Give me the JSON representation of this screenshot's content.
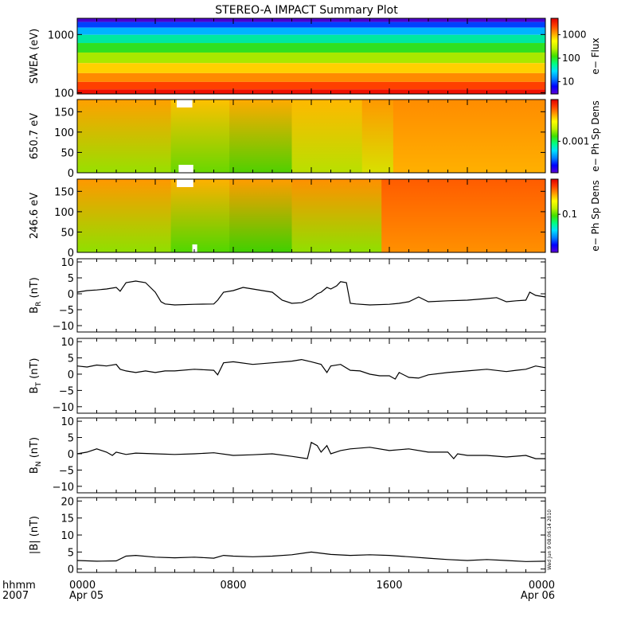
{
  "title": "STEREO-A IMPACT Summary Plot",
  "stamp": "Wed Jun  9 08:06:14 2010",
  "time_axis": {
    "label_top": "hhmm",
    "label_bottom": "2007",
    "range_hours": [
      0,
      24
    ],
    "ticks": [
      {
        "hour": 0,
        "time": "0000",
        "date": "Apr 05"
      },
      {
        "hour": 8,
        "time": "0800",
        "date": ""
      },
      {
        "hour": 16,
        "time": "1600",
        "date": ""
      },
      {
        "hour": 24,
        "time": "0000",
        "date": "Apr 06"
      }
    ]
  },
  "colors": {
    "trace": "#000000",
    "frame": "#000000",
    "background": "#ffffff"
  },
  "chart_data": [
    {
      "type": "heatmap",
      "name": "swea-spectrogram",
      "ylabel": "SWEA (eV)",
      "yscale": "log",
      "ylim": [
        95,
        1900
      ],
      "yticks": [
        {
          "v": 100,
          "label": "100"
        },
        {
          "v": 1000,
          "label": "1000"
        }
      ],
      "colorbar_label": "e− Flux",
      "colorbar_scale": "log",
      "colorbar_range": [
        3,
        5000
      ],
      "colorbar_ticks": [
        {
          "v": 10,
          "label": "10"
        },
        {
          "v": 100,
          "label": "100"
        },
        {
          "v": 1000,
          "label": "1000"
        }
      ],
      "bands": [
        {
          "energy_eV": 1800,
          "color": "#4b00d0"
        },
        {
          "energy_eV": 1500,
          "color": "#0040ff"
        },
        {
          "energy_eV": 1150,
          "color": "#00b4ff"
        },
        {
          "energy_eV": 850,
          "color": "#00e8a0"
        },
        {
          "energy_eV": 600,
          "color": "#30e020"
        },
        {
          "energy_eV": 400,
          "color": "#a8e800"
        },
        {
          "energy_eV": 260,
          "color": "#ffd000"
        },
        {
          "energy_eV": 180,
          "color": "#ff8a00"
        },
        {
          "energy_eV": 130,
          "color": "#ff4000"
        },
        {
          "energy_eV": 100,
          "color": "#f01000"
        }
      ]
    },
    {
      "type": "heatmap",
      "name": "pad-650-eV",
      "ylabel": "650.7 eV",
      "ylim": [
        0,
        180
      ],
      "yticks": [
        {
          "v": 0,
          "label": "0"
        },
        {
          "v": 50,
          "label": "50"
        },
        {
          "v": 100,
          "label": "100"
        },
        {
          "v": 150,
          "label": "150"
        }
      ],
      "colorbar_label": "e− Ph Sp Dens",
      "colorbar_ticks": [
        {
          "f": 0.43,
          "label": "0.001"
        }
      ],
      "segments": [
        {
          "t0": 0.0,
          "t1": 4.8,
          "upper": "#ffa000",
          "lower": "#98e000"
        },
        {
          "t0": 4.8,
          "t1": 7.8,
          "upper": "#ffc000",
          "lower": "#68d800"
        },
        {
          "t0": 7.8,
          "t1": 11.0,
          "upper": "#ffaa00",
          "lower": "#50d000"
        },
        {
          "t0": 11.0,
          "t1": 14.6,
          "upper": "#ffb800",
          "lower": "#b8e000"
        },
        {
          "t0": 14.6,
          "t1": 16.2,
          "upper": "#ff9800",
          "lower": "#d8e000"
        },
        {
          "t0": 16.2,
          "t1": 24.0,
          "upper": "#ff8c00",
          "lower": "#ffb000"
        }
      ],
      "gaps": [
        {
          "t0": 5.1,
          "t1": 5.9,
          "edge": "top"
        },
        {
          "t0": 5.2,
          "t1": 5.95,
          "edge": "bottom"
        }
      ]
    },
    {
      "type": "heatmap",
      "name": "pad-246-eV",
      "ylabel": "246.6 eV",
      "ylim": [
        0,
        180
      ],
      "yticks": [
        {
          "v": 0,
          "label": "0"
        },
        {
          "v": 50,
          "label": "50"
        },
        {
          "v": 100,
          "label": "100"
        },
        {
          "v": 150,
          "label": "150"
        }
      ],
      "colorbar_label": "e− Ph Sp Dens",
      "colorbar_ticks": [
        {
          "f": 0.52,
          "label": "0.1"
        }
      ],
      "segments": [
        {
          "t0": 0.0,
          "t1": 4.8,
          "upper": "#ff9800",
          "lower": "#90e000"
        },
        {
          "t0": 4.8,
          "t1": 7.8,
          "upper": "#ffb000",
          "lower": "#50d800"
        },
        {
          "t0": 7.8,
          "t1": 11.0,
          "upper": "#ff9c00",
          "lower": "#40d000"
        },
        {
          "t0": 11.0,
          "t1": 15.6,
          "upper": "#ff9000",
          "lower": "#90e000"
        },
        {
          "t0": 15.6,
          "t1": 24.0,
          "upper": "#ff5c00",
          "lower": "#ff9000"
        }
      ],
      "gaps": [
        {
          "t0": 5.1,
          "t1": 5.95,
          "edge": "top"
        },
        {
          "t0": 5.9,
          "t1": 6.15,
          "edge": "bottom"
        }
      ]
    },
    {
      "type": "line",
      "name": "br",
      "ylabel_main": "B",
      "ylabel_sub": "R",
      "ylabel_unit": " (nT)",
      "ylim": [
        -12,
        11
      ],
      "yticks": [
        {
          "v": -10,
          "label": "−10"
        },
        {
          "v": -5,
          "label": "−5"
        },
        {
          "v": 0,
          "label": "0"
        },
        {
          "v": 5,
          "label": "5"
        },
        {
          "v": 10,
          "label": "10"
        }
      ],
      "t": [
        0,
        0.5,
        1,
        1.5,
        2,
        2.2,
        2.5,
        3,
        3.5,
        4,
        4.3,
        4.5,
        5,
        6,
        7,
        7.2,
        7.5,
        8,
        8.5,
        9,
        9.5,
        10,
        10.5,
        11,
        11.5,
        12,
        12.3,
        12.5,
        12.8,
        13,
        13.3,
        13.5,
        13.8,
        14,
        14.3,
        15,
        16,
        16.5,
        17,
        17.5,
        18,
        19,
        20,
        21,
        21.5,
        22,
        22.5,
        23,
        23.2,
        23.5,
        24
      ],
      "values": [
        0.5,
        1,
        1.2,
        1.5,
        2,
        0.8,
        3.5,
        4,
        3.5,
        0.5,
        -2.5,
        -3.2,
        -3.5,
        -3.3,
        -3.2,
        -2,
        0.5,
        1,
        2,
        1.5,
        1,
        0.5,
        -2,
        -3,
        -2.8,
        -1.5,
        0,
        0.5,
        2,
        1.5,
        2.5,
        3.8,
        3.5,
        -3,
        -3.2,
        -3.5,
        -3.3,
        -3,
        -2.5,
        -1,
        -2.5,
        -2.2,
        -2,
        -1.5,
        -1.2,
        -2.5,
        -2.2,
        -2,
        0.5,
        -0.5,
        -1
      ]
    },
    {
      "type": "line",
      "name": "bt",
      "ylabel_main": "B",
      "ylabel_sub": "T",
      "ylabel_unit": " (nT)",
      "ylim": [
        -12,
        11
      ],
      "yticks": [
        {
          "v": -10,
          "label": "−10"
        },
        {
          "v": -5,
          "label": "−5"
        },
        {
          "v": 0,
          "label": "0"
        },
        {
          "v": 5,
          "label": "5"
        },
        {
          "v": 10,
          "label": "10"
        }
      ],
      "t": [
        0,
        0.5,
        1,
        1.5,
        2,
        2.2,
        2.5,
        3,
        3.5,
        4,
        4.5,
        5,
        6,
        7,
        7.2,
        7.5,
        8,
        9,
        10,
        11,
        11.5,
        12,
        12.5,
        12.8,
        13,
        13.5,
        14,
        14.5,
        15,
        15.5,
        16,
        16.3,
        16.5,
        17,
        17.5,
        18,
        19,
        20,
        21,
        22,
        22.5,
        23,
        23.5,
        24
      ],
      "values": [
        2.5,
        2.2,
        2.8,
        2.5,
        3,
        1.5,
        1,
        0.5,
        1,
        0.5,
        1,
        1,
        1.5,
        1.2,
        -0.2,
        3.5,
        3.8,
        3,
        3.5,
        4,
        4.5,
        3.8,
        3,
        0.5,
        2.5,
        3,
        1.2,
        1,
        0,
        -0.5,
        -0.5,
        -1.5,
        0.5,
        -1,
        -1.2,
        -0.2,
        0.5,
        1,
        1.5,
        0.8,
        1.2,
        1.5,
        2.5,
        2
      ]
    },
    {
      "type": "line",
      "name": "bn",
      "ylabel_main": "B",
      "ylabel_sub": "N",
      "ylabel_unit": " (nT)",
      "ylim": [
        -12,
        11
      ],
      "yticks": [
        {
          "v": -10,
          "label": "−10"
        },
        {
          "v": -5,
          "label": "−5"
        },
        {
          "v": 0,
          "label": "0"
        },
        {
          "v": 5,
          "label": "5"
        },
        {
          "v": 10,
          "label": "10"
        }
      ],
      "t": [
        0,
        0.5,
        1,
        1.5,
        1.8,
        2,
        2.5,
        3,
        4,
        5,
        6,
        7,
        8,
        9,
        10,
        11,
        11.8,
        12,
        12.3,
        12.5,
        12.8,
        13,
        13.5,
        14,
        15,
        16,
        17,
        18,
        19,
        19.3,
        19.5,
        20,
        21,
        22,
        23,
        23.5,
        24
      ],
      "values": [
        0,
        0.5,
        1.5,
        0.5,
        -0.5,
        0.5,
        -0.2,
        0.2,
        0,
        -0.2,
        0,
        0.3,
        -0.5,
        -0.3,
        0,
        -0.8,
        -1.5,
        3.5,
        2.5,
        0.5,
        2.5,
        0,
        1,
        1.5,
        2,
        1,
        1.5,
        0.5,
        0.5,
        -1.5,
        0,
        -0.5,
        -0.5,
        -1,
        -0.5,
        -1.5,
        -1.5
      ]
    },
    {
      "type": "line",
      "name": "bmag",
      "ylabel_main": "|B| (nT)",
      "ylim": [
        -1,
        21
      ],
      "yticks": [
        {
          "v": 0,
          "label": "0"
        },
        {
          "v": 5,
          "label": "5"
        },
        {
          "v": 10,
          "label": "10"
        },
        {
          "v": 15,
          "label": "15"
        },
        {
          "v": 20,
          "label": "20"
        }
      ],
      "t": [
        0,
        1,
        2,
        2.5,
        3,
        4,
        5,
        6,
        7,
        7.5,
        8,
        9,
        10,
        11,
        12,
        13,
        14,
        15,
        16,
        17,
        18,
        19,
        20,
        21,
        22,
        23,
        24
      ],
      "values": [
        2.5,
        2.3,
        2.4,
        3.8,
        4,
        3.5,
        3.3,
        3.5,
        3.2,
        4,
        3.8,
        3.6,
        3.8,
        4.2,
        5,
        4.3,
        4,
        4.2,
        4,
        3.6,
        3.2,
        2.8,
        2.5,
        2.8,
        2.5,
        2.2,
        2.3
      ]
    }
  ]
}
